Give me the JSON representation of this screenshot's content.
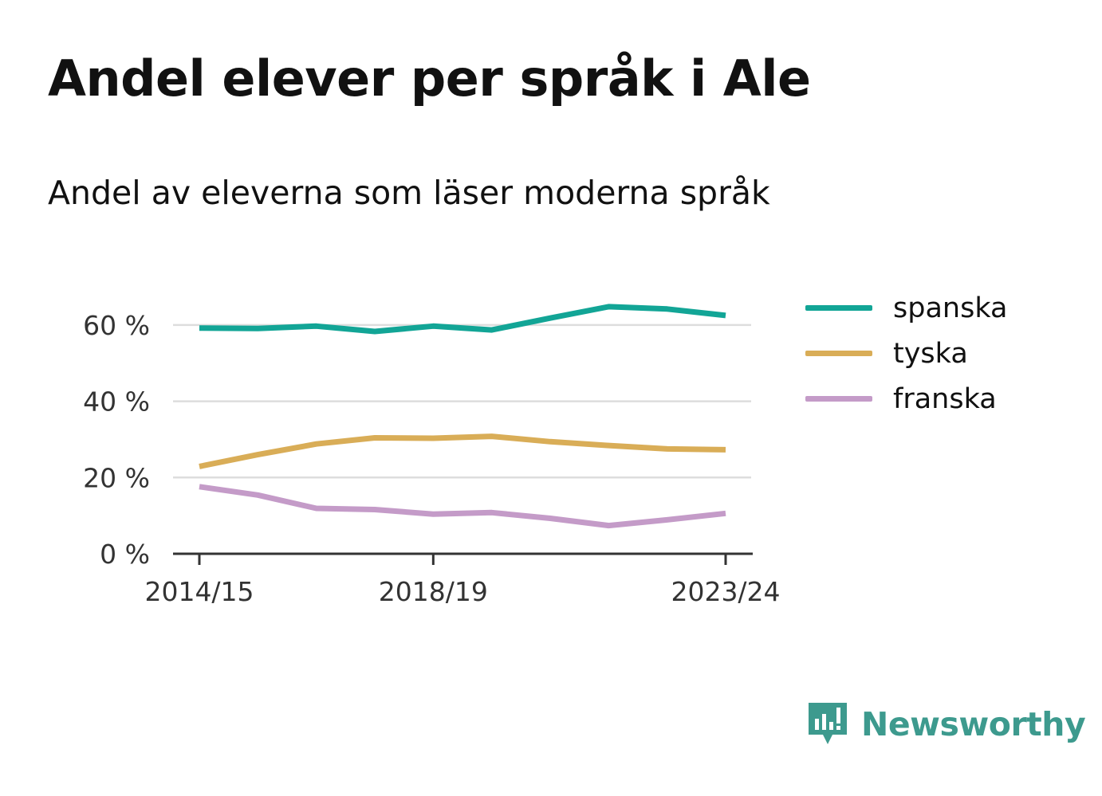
{
  "header": {
    "title": "Andel elever per språk i Ale",
    "subtitle": "Andel av eleverna som läser moderna språk"
  },
  "brand": {
    "name": "Newsworthy",
    "icon": "newsworthy-logo-icon",
    "color": "#3d9a8e"
  },
  "chart_data": {
    "type": "line",
    "x": [
      "2014/15",
      "2015/16",
      "2016/17",
      "2017/18",
      "2018/19",
      "2019/20",
      "2020/21",
      "2021/22",
      "2022/23",
      "2023/24"
    ],
    "x_tick_labels": [
      "2014/15",
      "2018/19",
      "2023/24"
    ],
    "y_ticks": [
      0,
      20,
      40,
      60
    ],
    "y_tick_labels": [
      "0 %",
      "20 %",
      "40 %",
      "60 %"
    ],
    "ylim": [
      0,
      70
    ],
    "grid": true,
    "legend_position": "right",
    "series": [
      {
        "name": "spanska",
        "color": "#12a596",
        "values": [
          59.2,
          59.1,
          59.7,
          58.3,
          59.7,
          58.7,
          61.8,
          64.8,
          64.2,
          62.5
        ]
      },
      {
        "name": "tyska",
        "color": "#d9ad57",
        "values": [
          22.9,
          26.0,
          28.8,
          30.4,
          30.3,
          30.8,
          29.4,
          28.4,
          27.5,
          27.3
        ]
      },
      {
        "name": "franska",
        "color": "#c49bc8",
        "values": [
          17.6,
          15.4,
          11.9,
          11.6,
          10.4,
          10.8,
          9.3,
          7.4,
          8.9,
          10.6
        ]
      }
    ]
  }
}
